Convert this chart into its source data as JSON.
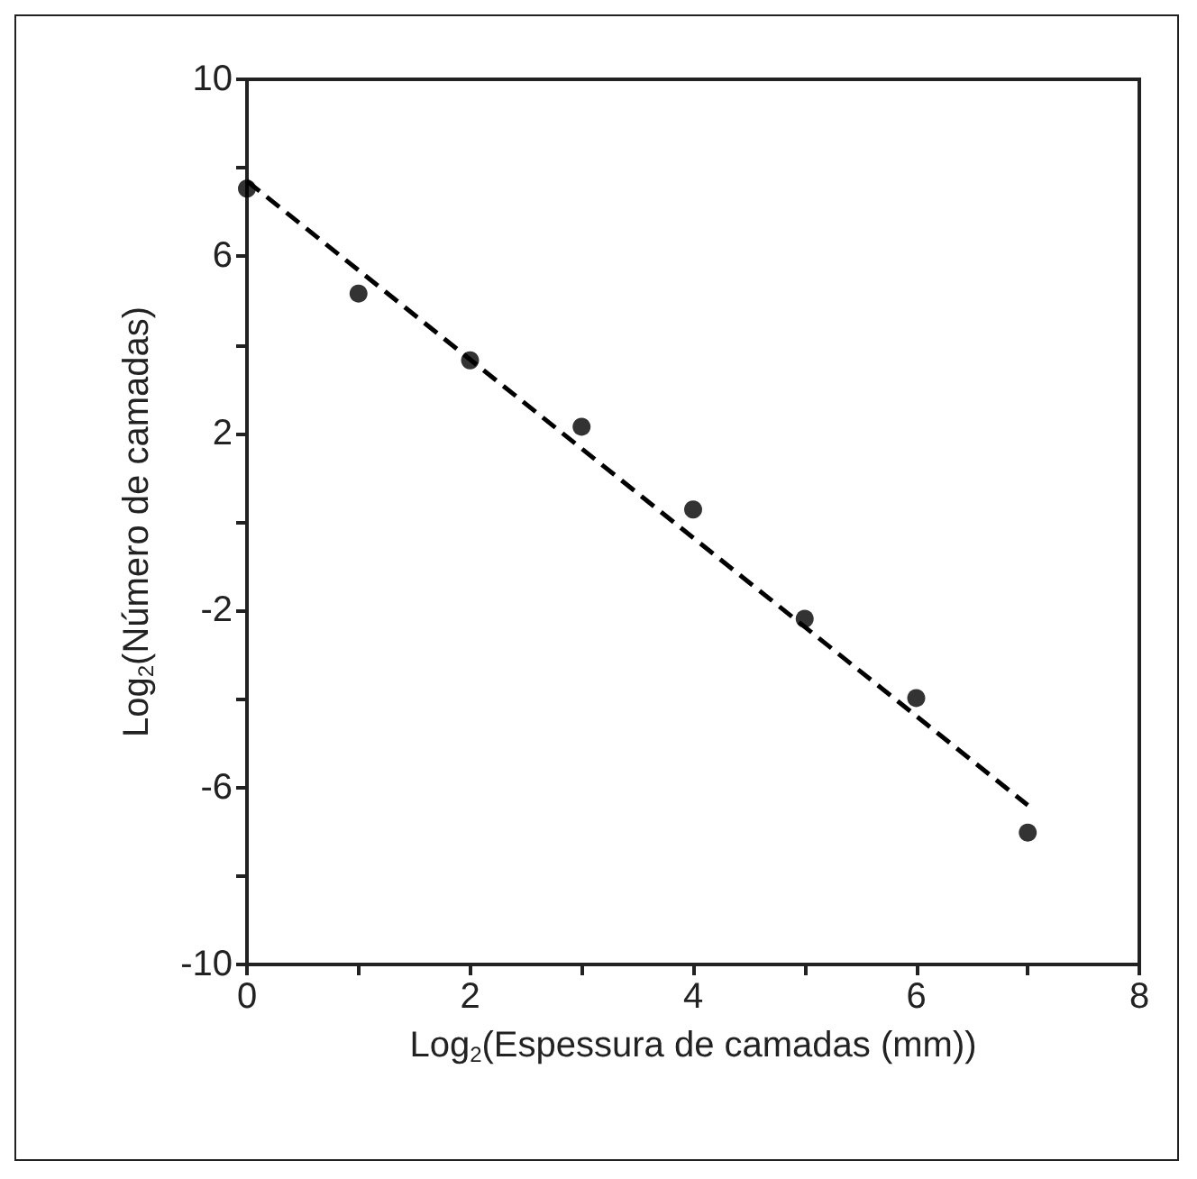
{
  "chart_data": {
    "type": "scatter",
    "xlabel": "Log$_{2}$(Espessura de camadas (mm))",
    "ylabel": "Log$_{2}$(Número de camadas)",
    "x": [
      0,
      1,
      2,
      3,
      4,
      5,
      6,
      7
    ],
    "series": [
      {
        "color": "#000000",
        "marker": "circle",
        "values": [
          7.53,
          5.16,
          3.65,
          2.15,
          0.28,
          -2.19,
          -3.98,
          -7.02
        ]
      },
      {
        "type": "line",
        "color": "#000000",
        "marker": "none",
        "line_style": "dashed",
        "x": [
          0,
          7
        ],
        "values": [
          7.7,
          -6.4
        ]
      }
    ],
    "xlim": [
      0,
      8
    ],
    "xticks": [
      0,
      {
        "value": 1,
        "label": null
      },
      2,
      {
        "value": 3,
        "label": null
      },
      4,
      {
        "value": 5,
        "label": null
      },
      6,
      {
        "value": 7,
        "label": null
      },
      8
    ],
    "ylim": [
      -10,
      10
    ],
    "yticks": [
      -10,
      {
        "value": -8,
        "label": null
      },
      -6,
      {
        "value": -4,
        "label": null
      },
      -2,
      {
        "value": 0,
        "label": null
      },
      2,
      {
        "value": 4,
        "label": null
      },
      6,
      {
        "value": 8,
        "label": null
      },
      10
    ],
    "grid": false
  }
}
